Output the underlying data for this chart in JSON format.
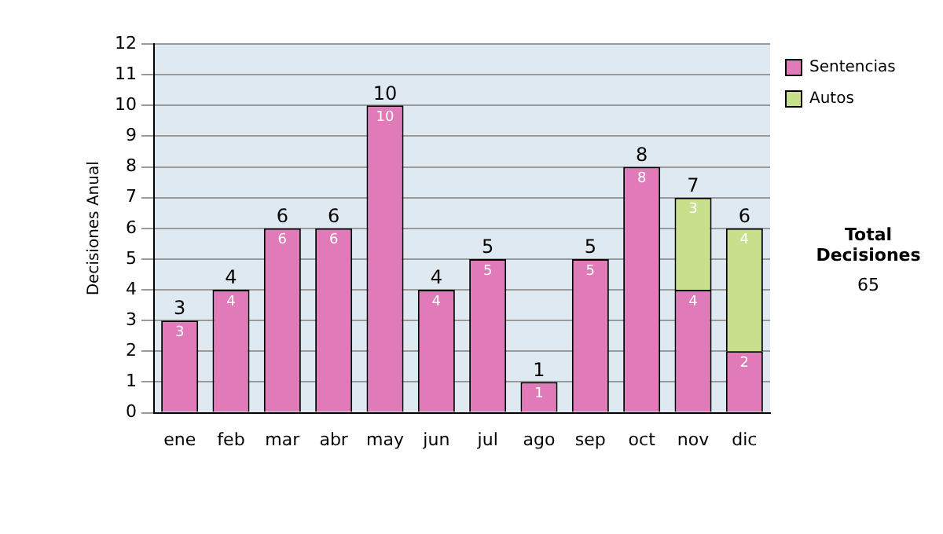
{
  "chart_data": {
    "type": "bar",
    "stacked": true,
    "ylabel": "Decisiones Anual",
    "categories": [
      "ene",
      "feb",
      "mar",
      "abr",
      "may",
      "jun",
      "jul",
      "ago",
      "sep",
      "oct",
      "nov",
      "dic"
    ],
    "series": [
      {
        "name": "Sentencias",
        "color": "#e07ab8",
        "values": [
          3,
          4,
          6,
          6,
          10,
          4,
          5,
          1,
          5,
          8,
          4,
          2
        ]
      },
      {
        "name": "Autos",
        "color": "#c8e08c",
        "values": [
          null,
          null,
          null,
          null,
          null,
          null,
          null,
          null,
          null,
          null,
          3,
          4
        ]
      }
    ],
    "totals": [
      "3",
      "4",
      "6",
      "6",
      "10",
      "4",
      "5",
      "1",
      "5",
      "8",
      "7",
      "6"
    ],
    "data_labels": true,
    "ylim": [
      0,
      12
    ],
    "yticks": [
      0,
      1,
      2,
      3,
      4,
      5,
      6,
      7,
      8,
      9,
      10,
      11,
      12
    ],
    "grid": "y",
    "legend": "right",
    "annotations": [
      "Total Decisiones",
      "65"
    ]
  }
}
